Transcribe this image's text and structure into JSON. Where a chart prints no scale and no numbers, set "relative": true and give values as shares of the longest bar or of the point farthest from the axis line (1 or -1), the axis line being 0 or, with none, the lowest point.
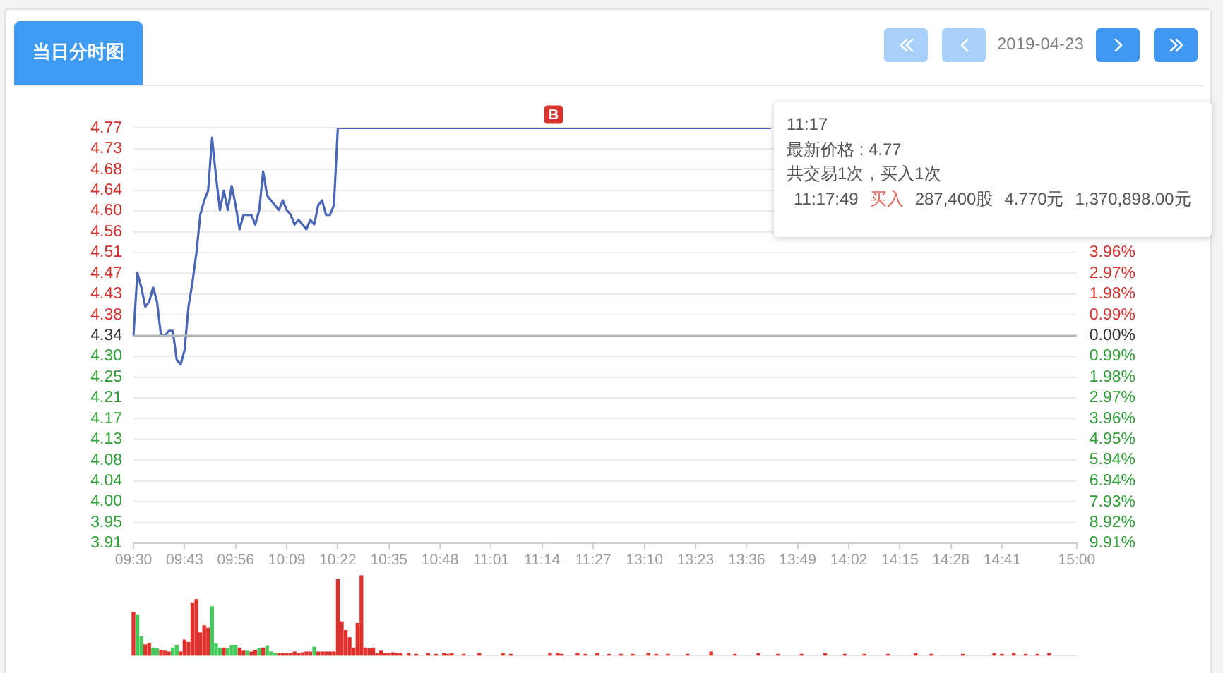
{
  "chart_data": [
    {
      "type": "line",
      "title": "当日分时图",
      "subtitle": "2019-04-23",
      "categories": [
        "09:30",
        null,
        null,
        null,
        null,
        null,
        null,
        null,
        null,
        null,
        null,
        null,
        null,
        "09:43",
        null,
        null,
        null,
        null,
        null,
        null,
        null,
        null,
        null,
        null,
        null,
        null,
        "09:56",
        null,
        null,
        null,
        null,
        null,
        null,
        null,
        null,
        null,
        null,
        null,
        null,
        "10:09",
        null,
        null,
        null,
        null,
        null,
        null,
        null,
        null,
        null,
        null,
        null,
        null,
        "10:22",
        null,
        null,
        null,
        null,
        null,
        null,
        null,
        null,
        null,
        null,
        null,
        null,
        "10:35",
        null,
        null,
        null,
        null,
        null,
        null,
        null,
        null,
        null,
        null,
        null,
        null,
        "10:48",
        null,
        null,
        null,
        null,
        null,
        null,
        null,
        null,
        null,
        null,
        null,
        null,
        "11:01",
        null,
        null,
        null,
        null,
        null,
        null,
        null,
        null,
        null,
        null,
        null,
        null,
        "11:14",
        null,
        null,
        null,
        null,
        null,
        null,
        null,
        null,
        null,
        null,
        null,
        null,
        "11:27",
        null,
        null,
        null,
        null,
        null,
        null,
        null,
        null,
        null,
        null,
        null,
        null,
        "13:10",
        null,
        null,
        null,
        null,
        null,
        null,
        null,
        null,
        null,
        null,
        null,
        null,
        "13:23",
        null,
        null,
        null,
        null,
        null,
        null,
        null,
        null,
        null,
        null,
        null,
        null,
        "13:36",
        null,
        null,
        null,
        null,
        null,
        null,
        null,
        null,
        null,
        null,
        null,
        null,
        "13:49",
        null,
        null,
        null,
        null,
        null,
        null,
        null,
        null,
        null,
        null,
        null,
        null,
        "14:02",
        null,
        null,
        null,
        null,
        null,
        null,
        null,
        null,
        null,
        null,
        null,
        null,
        "14:15",
        null,
        null,
        null,
        null,
        null,
        null,
        null,
        null,
        null,
        null,
        null,
        null,
        "14:28",
        null,
        null,
        null,
        null,
        null,
        null,
        null,
        null,
        null,
        null,
        null,
        null,
        "14:41",
        null,
        null,
        null,
        null,
        null,
        null,
        null,
        null,
        null,
        null,
        null,
        null,
        null,
        null,
        null,
        null,
        null,
        null,
        "15:00"
      ],
      "values": [
        4.34,
        4.47,
        4.44,
        4.4,
        4.41,
        4.44,
        4.41,
        4.34,
        4.34,
        4.35,
        4.35,
        4.29,
        4.28,
        4.31,
        4.4,
        4.45,
        4.51,
        4.59,
        4.62,
        4.64,
        4.75,
        4.67,
        4.6,
        4.64,
        4.6,
        4.65,
        4.61,
        4.56,
        4.59,
        4.59,
        4.59,
        4.57,
        4.6,
        4.68,
        4.63,
        4.62,
        4.61,
        4.6,
        4.62,
        4.6,
        4.59,
        4.57,
        4.58,
        4.57,
        4.56,
        4.58,
        4.57,
        4.61,
        4.62,
        4.59,
        4.59,
        4.61,
        4.77,
        4.77,
        4.77,
        4.77,
        4.77,
        4.77,
        4.77,
        4.77,
        4.77,
        4.77,
        4.77,
        4.77,
        4.77,
        4.77,
        4.77,
        4.77,
        4.77,
        4.77,
        4.77,
        4.77,
        4.77,
        4.77,
        4.77,
        4.77,
        4.77,
        4.77,
        4.77,
        4.77,
        4.77,
        4.77,
        4.77,
        4.77,
        4.77,
        4.77,
        4.77,
        4.77,
        4.77,
        4.77,
        4.77,
        4.77,
        4.77,
        4.77,
        4.77,
        4.77,
        4.77,
        4.77,
        4.77,
        4.77,
        4.77,
        4.77,
        4.77,
        4.77,
        4.77,
        4.77,
        4.77,
        4.77,
        4.77,
        4.77,
        4.77,
        4.77,
        4.77,
        4.77,
        4.77,
        4.77,
        4.77,
        4.77,
        4.77,
        4.77,
        4.77,
        4.77,
        4.77,
        4.77,
        4.77,
        4.77,
        4.77,
        4.77,
        4.77,
        4.77,
        4.77,
        4.77,
        4.77,
        4.77,
        4.77,
        4.77,
        4.77,
        4.77,
        4.77,
        4.77,
        4.77,
        4.77,
        4.77,
        4.77,
        4.77,
        4.77,
        4.77,
        4.77,
        4.77,
        4.77,
        4.77,
        4.77,
        4.77,
        4.77,
        4.77,
        4.77,
        4.77,
        4.77,
        4.77,
        4.77,
        4.77,
        4.77,
        4.77,
        null,
        null,
        null,
        null,
        null,
        null,
        null,
        null,
        null,
        null,
        null,
        null,
        null,
        null,
        null,
        null,
        null,
        null,
        null,
        null,
        null,
        null,
        null,
        null,
        null,
        null,
        null,
        null,
        null,
        null,
        null,
        null,
        null,
        null,
        null,
        null,
        null,
        null,
        null,
        null,
        null,
        null,
        null,
        null,
        null,
        null,
        null,
        null,
        null,
        null,
        null,
        null,
        null,
        null,
        null,
        null,
        null,
        null,
        null,
        null,
        null,
        null,
        null,
        null,
        null,
        null,
        null,
        null,
        null,
        null,
        null,
        null,
        null,
        null,
        null,
        null,
        null,
        null
      ],
      "color": "#4a66b6",
      "ylim": [
        3.91,
        4.77
      ],
      "yticks": [
        {
          "value": 4.77,
          "label": "4.77"
        },
        {
          "value": 4.727,
          "label": "4.73"
        },
        {
          "value": 4.684,
          "label": "4.68"
        },
        {
          "value": 4.641,
          "label": "4.64"
        },
        {
          "value": 4.598,
          "label": "4.60"
        },
        {
          "value": 4.555,
          "label": "4.56"
        },
        {
          "value": 4.512,
          "label": "4.51"
        },
        {
          "value": 4.469,
          "label": "4.47"
        },
        {
          "value": 4.426,
          "label": "4.43"
        },
        {
          "value": 4.383,
          "label": "4.38"
        },
        {
          "value": 4.34,
          "label": "4.34"
        },
        {
          "value": 4.297,
          "label": "4.30"
        },
        {
          "value": 4.254,
          "label": "4.25"
        },
        {
          "value": 4.211,
          "label": "4.21"
        },
        {
          "value": 4.168,
          "label": "4.17"
        },
        {
          "value": 4.125,
          "label": "4.13"
        },
        {
          "value": 4.082,
          "label": "4.08"
        },
        {
          "value": 4.039,
          "label": "4.04"
        },
        {
          "value": 3.996,
          "label": "4.00"
        },
        {
          "value": 3.953,
          "label": "3.95"
        },
        {
          "value": 3.91,
          "label": "3.91"
        }
      ],
      "y2lim": [
        -9.91,
        9.91
      ],
      "y2ticks": [
        {
          "value": 3.96,
          "label": "3.96%"
        },
        {
          "value": 2.97,
          "label": "2.97%"
        },
        {
          "value": 1.98,
          "label": "1.98%"
        },
        {
          "value": 0.99,
          "label": "0.99%"
        },
        {
          "value": 0,
          "label": "0.00%"
        },
        {
          "value": -0.99,
          "label": "0.99%"
        },
        {
          "value": -1.98,
          "label": "1.98%"
        },
        {
          "value": -2.97,
          "label": "2.97%"
        },
        {
          "value": -3.96,
          "label": "3.96%"
        },
        {
          "value": -4.95,
          "label": "4.95%"
        },
        {
          "value": -5.94,
          "label": "5.94%"
        },
        {
          "value": -6.94,
          "label": "6.94%"
        },
        {
          "value": -7.93,
          "label": "7.93%"
        },
        {
          "value": -8.92,
          "label": "8.92%"
        },
        {
          "value": -9.91,
          "label": "9.91%"
        }
      ],
      "ref_lines": [
        {
          "axis": "y",
          "value": 4.34,
          "color": "#b4b4b4"
        }
      ],
      "grid": "y",
      "annotations": [
        {
          "text": "B",
          "y": 4.77
        },
        "11:17",
        "最新价格 : 4.77",
        "共交易1次，买入1次",
        "11:17:49",
        "买入",
        "287,400股",
        "4.770元",
        "1,370,898.00元"
      ]
    },
    {
      "type": "bar",
      "relative": true,
      "categories": [
        null,
        null,
        null,
        null,
        null,
        null,
        null,
        null,
        null,
        null,
        null,
        null,
        null,
        null,
        null,
        null,
        null,
        null,
        null,
        null,
        null,
        null,
        null,
        null,
        null,
        null,
        null,
        null,
        null,
        null,
        null,
        null,
        null,
        null,
        null,
        null,
        null,
        null,
        null,
        null,
        null,
        null,
        null,
        null,
        null,
        null,
        null,
        null,
        null,
        null,
        null,
        null,
        null,
        null,
        null,
        null,
        null,
        null,
        null,
        null,
        null,
        null,
        null,
        null,
        null,
        null,
        null,
        null,
        null,
        null,
        null,
        null,
        null,
        null,
        null,
        null,
        null,
        null,
        null,
        null,
        null,
        null,
        null,
        null,
        null,
        null,
        null,
        null,
        null,
        null,
        null,
        null,
        null,
        null,
        null,
        null,
        null,
        null,
        null,
        null,
        null,
        null,
        null,
        null,
        null,
        null,
        null,
        null,
        null,
        null,
        null,
        null,
        null,
        null,
        null,
        null,
        null,
        null,
        null,
        null,
        null,
        null,
        null,
        null,
        null,
        null,
        null,
        null,
        null,
        null,
        null,
        null,
        null,
        null,
        null,
        null,
        null,
        null,
        null,
        null,
        null,
        null,
        null,
        null,
        null,
        null,
        null,
        null,
        null,
        null,
        null,
        null,
        null,
        null,
        null,
        null,
        null,
        null,
        null,
        null,
        null,
        null,
        null,
        null,
        null,
        null,
        null,
        null,
        null,
        null,
        null,
        null,
        null,
        null,
        null,
        null,
        null,
        null,
        null,
        null,
        null,
        null,
        null,
        null,
        null,
        null,
        null,
        null,
        null,
        null,
        null,
        null,
        null,
        null,
        null,
        null,
        null,
        null,
        null,
        null,
        null,
        null,
        null,
        null,
        null,
        null,
        null,
        null,
        null,
        null,
        null,
        null,
        null,
        null,
        null,
        null,
        null,
        null,
        null,
        null,
        null,
        null,
        null,
        null,
        null,
        null,
        null,
        null,
        null,
        null,
        null,
        null,
        null,
        null,
        null,
        null,
        null,
        null,
        null,
        null,
        null
      ],
      "values": [
        0.54,
        0.5,
        0.23,
        0.13,
        0.15,
        0.09,
        0.08,
        0.06,
        0.05,
        0.04,
        0.09,
        0.12,
        0.04,
        0.19,
        0.16,
        0.65,
        0.7,
        0.28,
        0.37,
        0.34,
        0.61,
        0.14,
        0.09,
        0.09,
        0.08,
        0.12,
        0.12,
        0.09,
        0.05,
        0.05,
        0.04,
        0.06,
        0.08,
        0.09,
        0.11,
        0.04,
        0.02,
        0.02,
        0.02,
        0.02,
        0.02,
        0.04,
        0.02,
        0.03,
        0.04,
        0.04,
        0.1,
        0.04,
        0.04,
        0.04,
        0.04,
        0.04,
        0.95,
        0.42,
        0.31,
        0.22,
        0.09,
        0.4,
        1,
        0.09,
        0.08,
        0.09,
        0.02,
        0.05,
        0.02,
        0.02,
        0.03,
        0.02,
        0.02,
        null,
        0.02,
        null,
        0.01,
        null,
        null,
        0.02,
        null,
        0.01,
        null,
        0.02,
        0.01,
        0.02,
        null,
        null,
        0.01,
        null,
        null,
        null,
        0.02,
        null,
        null,
        null,
        null,
        null,
        0.02,
        null,
        0.01,
        null,
        null,
        null,
        null,
        null,
        null,
        null,
        null,
        null,
        0.02,
        null,
        0.02,
        0.01,
        null,
        null,
        null,
        0.02,
        null,
        0.01,
        null,
        null,
        0.02,
        null,
        null,
        0.01,
        null,
        null,
        0.01,
        null,
        null,
        0.01,
        null,
        null,
        null,
        0.02,
        null,
        0.01,
        null,
        null,
        0.01,
        null,
        null,
        null,
        null,
        0.01,
        null,
        null,
        null,
        null,
        null,
        0.04,
        null,
        null,
        null,
        null,
        null,
        0.01,
        null,
        null,
        null,
        null,
        null,
        0.02,
        null,
        null,
        null,
        null,
        0.01,
        null,
        null,
        null,
        null,
        null,
        0.01,
        null,
        null,
        null,
        null,
        null,
        0.02,
        null,
        null,
        null,
        null,
        0.01,
        null,
        null,
        null,
        null,
        0.01,
        null,
        null,
        null,
        null,
        null,
        0.01,
        null,
        null,
        null,
        null,
        null,
        null,
        0.02,
        null,
        null,
        null,
        0.01,
        null,
        null,
        null,
        null,
        null,
        null,
        null,
        0.01,
        null,
        null,
        null,
        null,
        null,
        null,
        null,
        0.02,
        null,
        0.01,
        null,
        null,
        0.02,
        null,
        null,
        0.01,
        null,
        null,
        0.01,
        null,
        null,
        0.02,
        null,
        null,
        null,
        null,
        null,
        null,
        null
      ],
      "colors": [
        "#e0302c",
        "#45c95a",
        "#45c95a",
        "#e0302c",
        "#e0302c",
        "#45c95a",
        "#45c95a",
        "#e0302c",
        "#e0302c",
        "#e0302c",
        "#45c95a",
        "#45c95a",
        "#e0302c",
        "#e0302c",
        "#e0302c",
        "#e0302c",
        "#e0302c",
        "#e0302c",
        "#e0302c",
        "#e0302c",
        "#45c95a",
        "#45c95a",
        "#45c95a",
        "#e0302c",
        "#45c95a",
        "#45c95a",
        "#45c95a",
        "#e0302c",
        "#e0302c",
        "#45c95a",
        "#e0302c",
        "#e0302c",
        "#45c95a",
        "#e0302c",
        "#45c95a",
        "#45c95a",
        "#45c95a",
        "#e0302c",
        "#e0302c",
        "#e0302c",
        "#e0302c",
        "#e0302c",
        "#e0302c",
        "#e0302c",
        "#e0302c",
        "#e0302c",
        "#45c95a",
        "#e0302c",
        "#e0302c",
        "#e0302c",
        "#e0302c",
        "#e0302c",
        "#e0302c",
        "#e0302c",
        "#e0302c",
        "#e0302c",
        "#e0302c",
        "#e0302c",
        "#e0302c",
        "#e0302c",
        "#e0302c",
        "#e0302c",
        "#e0302c",
        "#e0302c",
        "#e0302c",
        "#e0302c",
        "#e0302c",
        "#e0302c",
        "#e0302c",
        "#e0302c",
        "#e0302c",
        "#e0302c",
        "#e0302c",
        "#e0302c",
        "#e0302c",
        "#e0302c",
        "#e0302c",
        "#e0302c",
        "#e0302c",
        "#e0302c",
        "#e0302c",
        "#e0302c",
        "#e0302c",
        "#e0302c",
        "#e0302c",
        "#e0302c",
        "#e0302c",
        "#e0302c",
        "#e0302c",
        "#e0302c",
        "#e0302c",
        "#e0302c",
        "#e0302c",
        "#e0302c",
        "#e0302c",
        "#e0302c",
        "#e0302c",
        "#e0302c",
        "#e0302c",
        "#e0302c",
        "#e0302c",
        "#e0302c",
        "#e0302c",
        "#e0302c",
        "#e0302c",
        "#e0302c",
        "#e0302c",
        "#e0302c",
        "#e0302c",
        "#e0302c",
        "#e0302c",
        "#e0302c",
        "#e0302c",
        "#e0302c",
        "#e0302c",
        "#e0302c",
        "#e0302c",
        "#e0302c",
        "#e0302c",
        "#e0302c",
        "#e0302c",
        "#e0302c",
        "#e0302c",
        "#e0302c",
        "#e0302c",
        "#e0302c",
        "#e0302c",
        "#e0302c",
        "#e0302c",
        "#e0302c",
        "#e0302c",
        "#e0302c",
        "#e0302c",
        "#e0302c",
        "#e0302c",
        "#e0302c",
        "#e0302c",
        "#e0302c",
        "#e0302c",
        "#e0302c",
        "#e0302c",
        "#e0302c",
        "#e0302c",
        "#e0302c",
        "#e0302c",
        "#e0302c",
        "#e0302c",
        "#e0302c",
        "#e0302c",
        "#e0302c",
        "#e0302c",
        "#e0302c",
        "#e0302c",
        "#e0302c",
        "#e0302c",
        "#e0302c",
        "#e0302c",
        "#e0302c",
        "#e0302c",
        "#e0302c",
        "#e0302c",
        "#e0302c",
        "#e0302c",
        "#e0302c",
        "#e0302c",
        "#e0302c",
        "#e0302c",
        "#e0302c",
        "#e0302c",
        "#e0302c",
        "#e0302c",
        "#e0302c",
        "#e0302c",
        "#e0302c",
        "#e0302c",
        "#e0302c",
        "#e0302c",
        "#e0302c",
        "#e0302c",
        "#e0302c",
        "#e0302c",
        "#e0302c",
        "#e0302c",
        "#e0302c",
        "#e0302c",
        "#e0302c",
        "#e0302c",
        "#e0302c",
        "#e0302c",
        "#e0302c",
        "#e0302c",
        "#e0302c",
        "#e0302c",
        "#e0302c",
        "#e0302c",
        "#e0302c",
        "#e0302c",
        "#e0302c",
        "#e0302c",
        "#e0302c",
        "#e0302c",
        "#e0302c",
        "#e0302c",
        "#e0302c",
        "#e0302c",
        "#e0302c",
        "#e0302c",
        "#e0302c",
        "#e0302c",
        "#e0302c",
        "#e0302c",
        "#e0302c",
        "#e0302c",
        "#e0302c",
        "#e0302c",
        "#e0302c",
        "#e0302c",
        "#e0302c",
        "#e0302c",
        "#e0302c",
        "#e0302c",
        "#e0302c",
        "#e0302c",
        "#e0302c",
        "#e0302c",
        "#e0302c",
        "#e0302c",
        "#e0302c",
        "#e0302c",
        "#e0302c",
        "#e0302c",
        "#e0302c",
        "#e0302c",
        "#e0302c",
        "#e0302c",
        "#e0302c",
        "#e0302c",
        "#e0302c",
        "#e0302c",
        "#e0302c",
        "#e0302c"
      ]
    }
  ]
}
